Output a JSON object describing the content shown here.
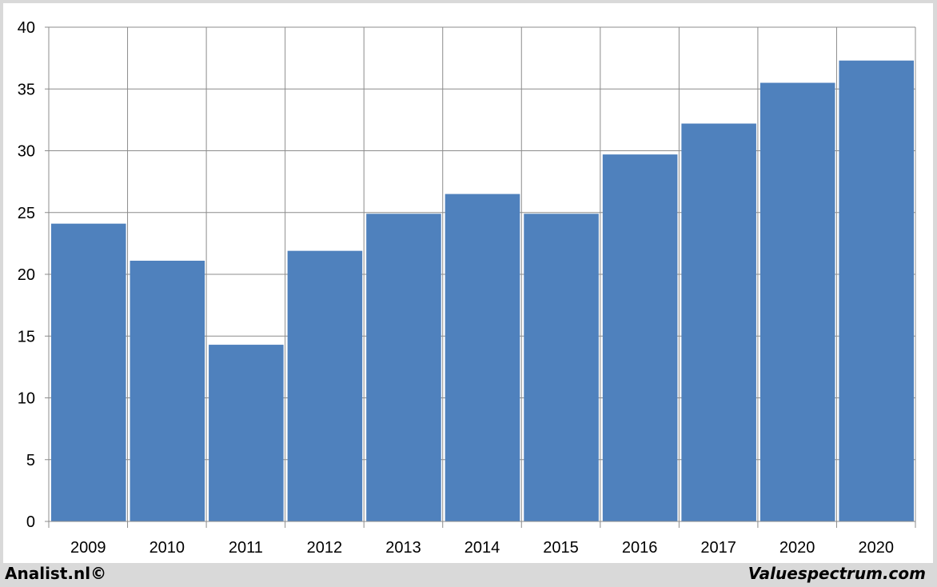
{
  "chart_data": {
    "type": "bar",
    "categories": [
      "2009",
      "2010",
      "2011",
      "2012",
      "2013",
      "2014",
      "2015",
      "2016",
      "2017",
      "2020",
      "2020"
    ],
    "values": [
      24.1,
      21.1,
      14.3,
      21.9,
      24.9,
      26.5,
      24.9,
      29.7,
      32.2,
      35.5,
      37.3
    ],
    "title": "",
    "xlabel": "",
    "ylabel": "",
    "ylim": [
      0,
      40
    ],
    "yticks": [
      0,
      5,
      10,
      15,
      20,
      25,
      30,
      35,
      40
    ],
    "grid": true,
    "legend": "none",
    "bar_color": "#4f81bd",
    "grid_color": "#8c8c8c"
  },
  "footer": {
    "left": "Analist.nl©",
    "right": "Valuespectrum.com"
  }
}
